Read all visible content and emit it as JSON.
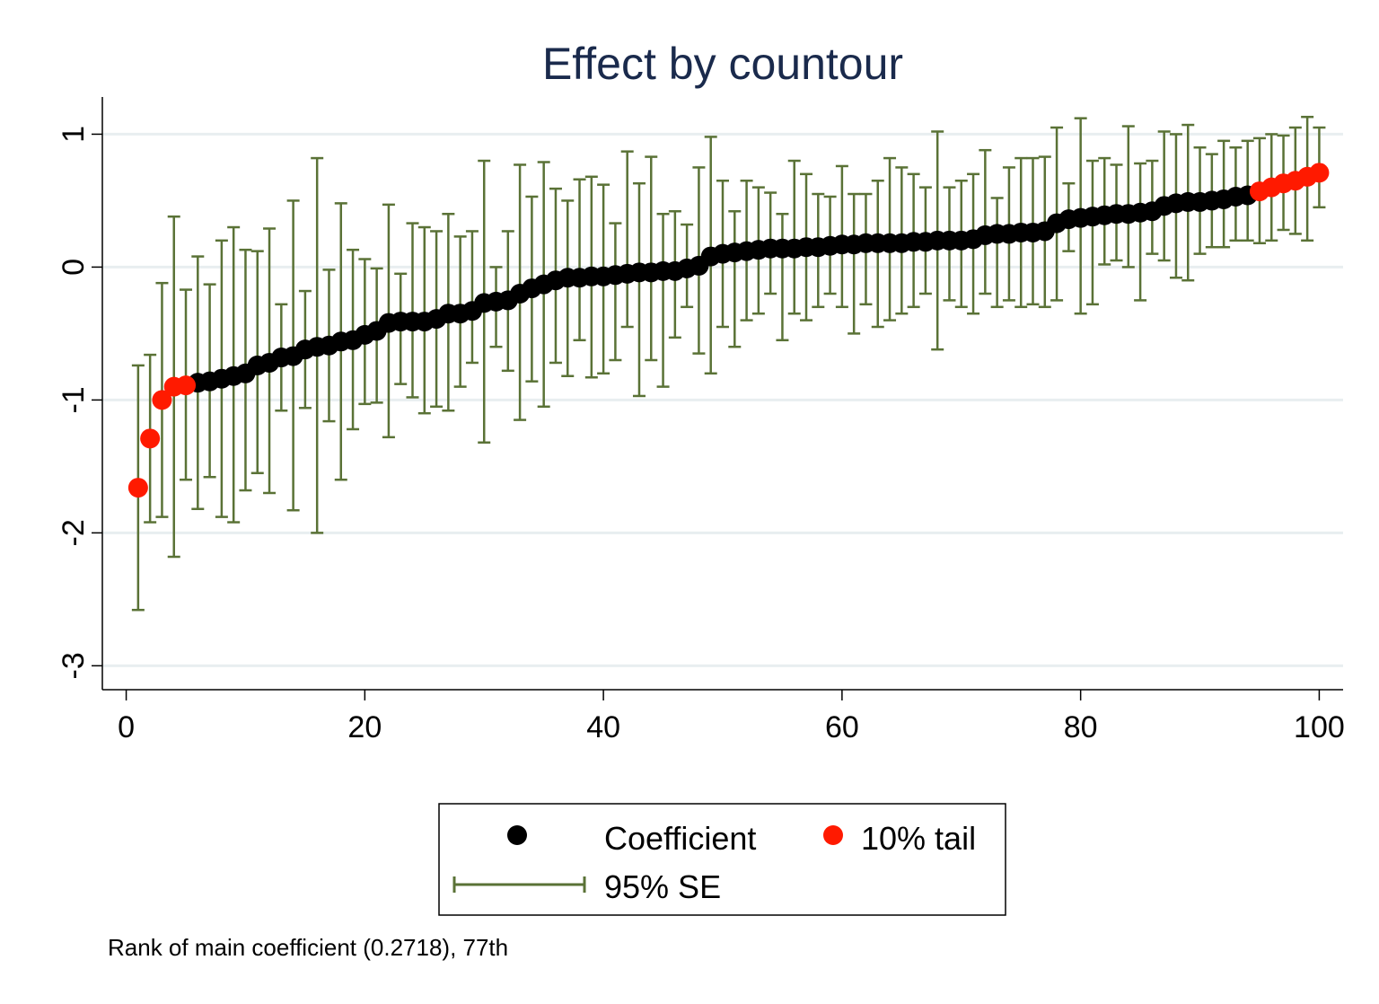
{
  "chart_data": {
    "type": "scatter",
    "title": "Effect by countour",
    "xlabel": "",
    "ylabel": "",
    "xlim": [
      -2,
      102
    ],
    "ylim": [
      -3.18,
      1.28
    ],
    "x_ticks": [
      0,
      20,
      40,
      60,
      80,
      100
    ],
    "x_tick_labels": [
      "0",
      "20",
      "40",
      "60",
      "80",
      "100"
    ],
    "y_ticks": [
      -3,
      -2,
      -1,
      0,
      1
    ],
    "y_tick_labels": [
      "-3",
      "-2",
      "-1",
      "0",
      "1"
    ],
    "grid": "horizontal",
    "legend_placement": "bottom",
    "note": "Rank of main coefficient (0.2718), 77th",
    "colors": {
      "coefficient": "#000000",
      "tail": "#ff1a00",
      "se": "#5a7236",
      "title": "#1a2a4c",
      "grid": "#e8eef0"
    },
    "legend": {
      "coefficient_label": "Coefficient",
      "tail_label": "10% tail",
      "se_label": "95% SE"
    },
    "x": [
      1,
      2,
      3,
      4,
      5,
      6,
      7,
      8,
      9,
      10,
      11,
      12,
      13,
      14,
      15,
      16,
      17,
      18,
      19,
      20,
      21,
      22,
      23,
      24,
      25,
      26,
      27,
      28,
      29,
      30,
      31,
      32,
      33,
      34,
      35,
      36,
      37,
      38,
      39,
      40,
      41,
      42,
      43,
      44,
      45,
      46,
      47,
      48,
      49,
      50,
      51,
      52,
      53,
      54,
      55,
      56,
      57,
      58,
      59,
      60,
      61,
      62,
      63,
      64,
      65,
      66,
      67,
      68,
      69,
      70,
      71,
      72,
      73,
      74,
      75,
      76,
      77,
      78,
      79,
      80,
      81,
      82,
      83,
      84,
      85,
      86,
      87,
      88,
      89,
      90,
      91,
      92,
      93,
      94,
      95,
      96,
      97,
      98,
      99,
      100
    ],
    "series": [
      {
        "name": "Coefficient",
        "values": [
          -1.66,
          -1.29,
          -1.0,
          -0.9,
          -0.89,
          -0.87,
          -0.86,
          -0.84,
          -0.82,
          -0.8,
          -0.74,
          -0.72,
          -0.68,
          -0.67,
          -0.62,
          -0.6,
          -0.59,
          -0.56,
          -0.55,
          -0.51,
          -0.48,
          -0.42,
          -0.41,
          -0.41,
          -0.41,
          -0.39,
          -0.35,
          -0.35,
          -0.33,
          -0.27,
          -0.26,
          -0.25,
          -0.2,
          -0.16,
          -0.13,
          -0.1,
          -0.08,
          -0.08,
          -0.07,
          -0.07,
          -0.06,
          -0.05,
          -0.04,
          -0.04,
          -0.03,
          -0.03,
          -0.01,
          0.01,
          0.08,
          0.1,
          0.11,
          0.12,
          0.13,
          0.14,
          0.14,
          0.14,
          0.15,
          0.15,
          0.16,
          0.17,
          0.17,
          0.18,
          0.18,
          0.18,
          0.18,
          0.19,
          0.19,
          0.2,
          0.2,
          0.2,
          0.21,
          0.24,
          0.25,
          0.25,
          0.26,
          0.26,
          0.27,
          0.33,
          0.36,
          0.37,
          0.38,
          0.39,
          0.4,
          0.4,
          0.41,
          0.42,
          0.46,
          0.48,
          0.49,
          0.49,
          0.5,
          0.51,
          0.53,
          0.54,
          0.57,
          0.6,
          0.63,
          0.65,
          0.68,
          0.71
        ],
        "lower": [
          -2.58,
          -1.92,
          -1.88,
          -2.18,
          -1.6,
          -1.82,
          -1.58,
          -1.88,
          -1.92,
          -1.68,
          -1.55,
          -1.7,
          -1.08,
          -1.83,
          -1.06,
          -2.0,
          -1.16,
          -1.6,
          -1.22,
          -1.03,
          -1.02,
          -1.28,
          -0.88,
          -0.98,
          -1.1,
          -1.05,
          -1.08,
          -0.9,
          -0.72,
          -1.32,
          -0.6,
          -0.78,
          -1.15,
          -0.86,
          -1.05,
          -0.72,
          -0.82,
          -0.55,
          -0.83,
          -0.8,
          -0.7,
          -0.45,
          -0.97,
          -0.7,
          -0.9,
          -0.53,
          -0.3,
          -0.65,
          -0.8,
          -0.45,
          -0.6,
          -0.4,
          -0.35,
          -0.2,
          -0.55,
          -0.35,
          -0.4,
          -0.3,
          -0.2,
          -0.3,
          -0.5,
          -0.28,
          -0.45,
          -0.4,
          -0.35,
          -0.3,
          -0.2,
          -0.62,
          -0.25,
          -0.3,
          -0.35,
          -0.2,
          -0.3,
          -0.25,
          -0.3,
          -0.28,
          -0.3,
          -0.25,
          0.12,
          -0.35,
          -0.28,
          0.02,
          0.05,
          0.0,
          -0.25,
          0.1,
          0.05,
          -0.08,
          -0.1,
          0.1,
          0.15,
          0.15,
          0.2,
          0.2,
          0.18,
          0.2,
          0.28,
          0.25,
          0.2,
          0.45
        ],
        "upper": [
          -0.74,
          -0.66,
          -0.12,
          0.38,
          -0.17,
          0.08,
          -0.13,
          0.2,
          0.3,
          0.13,
          0.12,
          0.29,
          -0.28,
          0.5,
          -0.18,
          0.82,
          -0.02,
          0.48,
          0.13,
          0.06,
          -0.01,
          0.47,
          -0.05,
          0.33,
          0.3,
          0.27,
          0.4,
          0.23,
          0.27,
          0.8,
          0.0,
          0.27,
          0.77,
          0.53,
          0.79,
          0.59,
          0.5,
          0.66,
          0.68,
          0.62,
          0.33,
          0.87,
          0.63,
          0.83,
          0.4,
          0.42,
          0.32,
          0.75,
          0.98,
          0.65,
          0.42,
          0.65,
          0.6,
          0.56,
          0.4,
          0.8,
          0.7,
          0.55,
          0.53,
          0.76,
          0.55,
          0.55,
          0.65,
          0.82,
          0.75,
          0.7,
          0.6,
          1.02,
          0.6,
          0.65,
          0.7,
          0.88,
          0.52,
          0.75,
          0.82,
          0.82,
          0.83,
          1.05,
          0.63,
          1.12,
          0.8,
          0.82,
          0.77,
          1.06,
          0.78,
          0.8,
          1.02,
          1.0,
          1.07,
          0.9,
          0.85,
          0.95,
          0.9,
          0.95,
          0.97,
          1.0,
          0.99,
          1.05,
          1.13,
          1.05
        ]
      }
    ],
    "tail_indices": [
      0,
      1,
      2,
      3,
      4,
      94,
      95,
      96,
      97,
      98,
      99
    ]
  }
}
